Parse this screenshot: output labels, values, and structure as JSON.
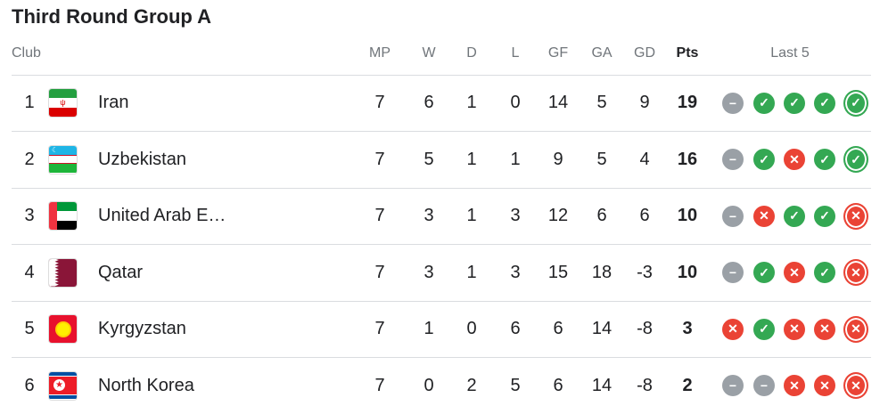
{
  "title": "Third Round Group A",
  "headers": {
    "club": "Club",
    "mp": "MP",
    "w": "W",
    "d": "D",
    "l": "L",
    "gf": "GF",
    "ga": "GA",
    "gd": "GD",
    "pts": "Pts",
    "last5": "Last 5"
  },
  "colors": {
    "win": "#34a853",
    "loss": "#ea4335",
    "draw": "#9aa0a6"
  },
  "rows": [
    {
      "pos": "1",
      "name": "Iran",
      "flag": "iran-flag",
      "mp": "7",
      "w": "6",
      "d": "1",
      "l": "0",
      "gf": "14",
      "ga": "5",
      "gd": "9",
      "pts": "19",
      "last5": [
        "D",
        "W",
        "W",
        "W",
        "W"
      ]
    },
    {
      "pos": "2",
      "name": "Uzbekistan",
      "flag": "uzbekistan-flag",
      "mp": "7",
      "w": "5",
      "d": "1",
      "l": "1",
      "gf": "9",
      "ga": "5",
      "gd": "4",
      "pts": "16",
      "last5": [
        "D",
        "W",
        "L",
        "W",
        "W"
      ]
    },
    {
      "pos": "3",
      "name": "United Arab E…",
      "flag": "uae-flag",
      "mp": "7",
      "w": "3",
      "d": "1",
      "l": "3",
      "gf": "12",
      "ga": "6",
      "gd": "6",
      "pts": "10",
      "last5": [
        "D",
        "L",
        "W",
        "W",
        "L"
      ]
    },
    {
      "pos": "4",
      "name": "Qatar",
      "flag": "qatar-flag",
      "mp": "7",
      "w": "3",
      "d": "1",
      "l": "3",
      "gf": "15",
      "ga": "18",
      "gd": "-3",
      "pts": "10",
      "last5": [
        "D",
        "W",
        "L",
        "W",
        "L"
      ]
    },
    {
      "pos": "5",
      "name": "Kyrgyzstan",
      "flag": "kyrgyzstan-flag",
      "mp": "7",
      "w": "1",
      "d": "0",
      "l": "6",
      "gf": "6",
      "ga": "14",
      "gd": "-8",
      "pts": "3",
      "last5": [
        "L",
        "W",
        "L",
        "L",
        "L"
      ]
    },
    {
      "pos": "6",
      "name": "North Korea",
      "flag": "north-korea-flag",
      "mp": "7",
      "w": "0",
      "d": "2",
      "l": "5",
      "gf": "6",
      "ga": "14",
      "gd": "-8",
      "pts": "2",
      "last5": [
        "D",
        "D",
        "L",
        "L",
        "L"
      ]
    }
  ]
}
